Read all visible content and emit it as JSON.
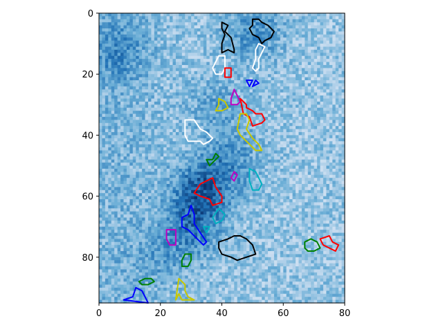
{
  "chart_data": {
    "type": "heatmap",
    "grid": false,
    "xlim": [
      0,
      80
    ],
    "ylim": [
      95,
      0
    ],
    "xticks": [
      0,
      20,
      40,
      60,
      80
    ],
    "yticks": [
      0,
      20,
      40,
      60,
      80
    ],
    "heatmap": {
      "colormap": "Blues",
      "columns": 80,
      "rows": 95,
      "dark_regions": [
        {
          "x": 33,
          "y": 58,
          "strength": 0.9
        },
        {
          "x": 30,
          "y": 70,
          "strength": 0.6
        },
        {
          "x": 42,
          "y": 48,
          "strength": 0.5
        },
        {
          "x": 50,
          "y": 6,
          "strength": 0.55
        },
        {
          "x": 6,
          "y": 12,
          "strength": 0.45
        },
        {
          "x": 38,
          "y": 30,
          "strength": 0.35
        },
        {
          "x": 20,
          "y": 80,
          "strength": 0.3
        }
      ]
    },
    "contours": [
      {
        "color": "#000000",
        "points": [
          [
            40,
            3
          ],
          [
            42,
            4
          ],
          [
            41,
            6
          ],
          [
            43,
            8
          ],
          [
            44,
            12
          ],
          [
            44,
            13
          ],
          [
            42,
            12
          ],
          [
            40,
            13
          ],
          [
            40,
            10
          ],
          [
            41,
            7
          ],
          [
            40,
            5
          ]
        ]
      },
      {
        "color": "#000000",
        "points": [
          [
            50,
            2
          ],
          [
            52,
            2
          ],
          [
            53,
            3
          ],
          [
            55,
            4
          ],
          [
            57,
            6
          ],
          [
            56,
            8
          ],
          [
            54,
            9
          ],
          [
            53,
            10
          ],
          [
            52,
            8
          ],
          [
            50,
            7
          ],
          [
            49,
            5
          ],
          [
            50,
            4
          ]
        ]
      },
      {
        "color": "#ffffff",
        "points": [
          [
            52,
            10
          ],
          [
            54,
            11
          ],
          [
            53,
            13
          ],
          [
            52,
            15
          ],
          [
            52,
            18
          ],
          [
            51,
            19
          ],
          [
            50,
            18
          ],
          [
            51,
            15
          ],
          [
            51,
            12
          ]
        ]
      },
      {
        "color": "#ffffff",
        "points": [
          [
            39,
            14
          ],
          [
            41,
            14
          ],
          [
            41,
            18
          ],
          [
            40,
            20
          ],
          [
            38,
            20
          ],
          [
            37,
            18
          ],
          [
            38,
            16
          ]
        ]
      },
      {
        "color": "#ff0000",
        "points": [
          [
            41,
            18
          ],
          [
            43,
            18
          ],
          [
            43,
            21
          ],
          [
            41,
            21
          ]
        ]
      },
      {
        "color": "#0000ff",
        "points": [
          [
            48,
            22
          ],
          [
            50,
            22
          ],
          [
            49,
            24
          ]
        ]
      },
      {
        "color": "#0000ff",
        "points": [
          [
            51,
            22
          ],
          [
            52,
            23
          ],
          [
            50,
            24
          ]
        ]
      },
      {
        "color": "#c000c0",
        "points": [
          [
            44,
            25
          ],
          [
            45,
            27
          ],
          [
            46,
            29
          ],
          [
            45,
            30
          ],
          [
            43,
            30
          ],
          [
            43,
            28
          ]
        ]
      },
      {
        "color": "#ffffff",
        "points": [
          [
            28,
            35
          ],
          [
            31,
            35
          ],
          [
            33,
            38
          ],
          [
            35,
            39
          ],
          [
            37,
            41
          ],
          [
            36,
            42
          ],
          [
            34,
            43
          ],
          [
            33,
            42
          ],
          [
            29,
            42
          ],
          [
            28,
            40
          ],
          [
            28,
            37
          ]
        ]
      },
      {
        "color": "#c8c800",
        "points": [
          [
            39,
            28
          ],
          [
            41,
            29
          ],
          [
            42,
            31
          ],
          [
            40,
            32
          ],
          [
            38,
            32
          ],
          [
            39,
            30
          ]
        ]
      },
      {
        "color": "#ff0000",
        "points": [
          [
            46,
            28
          ],
          [
            48,
            30
          ],
          [
            48,
            31
          ],
          [
            50,
            32
          ],
          [
            51,
            33
          ],
          [
            53,
            33
          ],
          [
            54,
            35
          ],
          [
            53,
            36
          ],
          [
            50,
            37
          ],
          [
            49,
            34
          ],
          [
            47,
            33
          ]
        ]
      },
      {
        "color": "#c8c800",
        "points": [
          [
            46,
            33
          ],
          [
            48,
            33
          ],
          [
            49,
            35
          ],
          [
            48,
            38
          ],
          [
            50,
            41
          ],
          [
            52,
            43
          ],
          [
            53,
            45
          ],
          [
            51,
            45
          ],
          [
            48,
            42
          ],
          [
            46,
            40
          ],
          [
            45,
            38
          ]
        ]
      },
      {
        "color": "#008000",
        "points": [
          [
            38,
            46
          ],
          [
            39,
            47
          ],
          [
            37,
            49
          ],
          [
            36,
            50
          ],
          [
            35,
            48
          ],
          [
            37,
            48
          ]
        ]
      },
      {
        "color": "#c000c0",
        "points": [
          [
            44,
            52
          ],
          [
            45,
            53
          ],
          [
            44,
            55
          ],
          [
            43,
            54
          ]
        ]
      },
      {
        "color": "#00b0c0",
        "points": [
          [
            49,
            51
          ],
          [
            51,
            52
          ],
          [
            52,
            54
          ],
          [
            53,
            56
          ],
          [
            52,
            58
          ],
          [
            50,
            58
          ],
          [
            49,
            55
          ]
        ]
      },
      {
        "color": "#ff0000",
        "points": [
          [
            33,
            56
          ],
          [
            37,
            54
          ],
          [
            38,
            57
          ],
          [
            40,
            60
          ],
          [
            40,
            62
          ],
          [
            37,
            63
          ],
          [
            36,
            61
          ],
          [
            33,
            60
          ],
          [
            31,
            59
          ]
        ]
      },
      {
        "color": "#00b0c0",
        "points": [
          [
            39,
            64
          ],
          [
            41,
            66
          ],
          [
            40,
            68
          ],
          [
            38,
            69
          ],
          [
            37,
            67
          ]
        ]
      },
      {
        "color": "#0000ff",
        "points": [
          [
            30,
            63
          ],
          [
            31,
            66
          ],
          [
            31,
            69
          ],
          [
            33,
            72
          ],
          [
            35,
            75
          ],
          [
            34,
            76
          ],
          [
            32,
            74
          ],
          [
            29,
            71
          ],
          [
            27,
            70
          ],
          [
            27,
            67
          ],
          [
            29,
            66
          ]
        ]
      },
      {
        "color": "#c000c0",
        "points": [
          [
            22,
            71
          ],
          [
            25,
            71
          ],
          [
            25,
            74
          ],
          [
            25,
            76
          ],
          [
            23,
            76
          ],
          [
            22,
            74
          ]
        ]
      },
      {
        "color": "#00b0c0",
        "points": [
          [
            34,
            70
          ],
          [
            36,
            70
          ],
          [
            35,
            72
          ]
        ]
      },
      {
        "color": "#000000",
        "points": [
          [
            39,
            75
          ],
          [
            42,
            74
          ],
          [
            44,
            73
          ],
          [
            46,
            73
          ],
          [
            48,
            74
          ],
          [
            50,
            76
          ],
          [
            51,
            79
          ],
          [
            48,
            80
          ],
          [
            45,
            81
          ],
          [
            43,
            80
          ],
          [
            40,
            79
          ],
          [
            39,
            77
          ]
        ]
      },
      {
        "color": "#008000",
        "points": [
          [
            67,
            75
          ],
          [
            69,
            74
          ],
          [
            71,
            75
          ],
          [
            72,
            77
          ],
          [
            70,
            78
          ],
          [
            68,
            78
          ],
          [
            67,
            77
          ]
        ]
      },
      {
        "color": "#ff0000",
        "points": [
          [
            72,
            74
          ],
          [
            75,
            73
          ],
          [
            76,
            75
          ],
          [
            78,
            76
          ],
          [
            77,
            78
          ],
          [
            75,
            77
          ],
          [
            73,
            76
          ]
        ]
      },
      {
        "color": "#008000",
        "points": [
          [
            28,
            79
          ],
          [
            30,
            79
          ],
          [
            30,
            81
          ],
          [
            29,
            83
          ],
          [
            27,
            83
          ],
          [
            27,
            81
          ]
        ]
      },
      {
        "color": "#008000",
        "points": [
          [
            13,
            88
          ],
          [
            15,
            87
          ],
          [
            17,
            87
          ],
          [
            18,
            88
          ],
          [
            16,
            89
          ],
          [
            14,
            89
          ]
        ]
      },
      {
        "color": "#0000ff",
        "points": [
          [
            8,
            94
          ],
          [
            11,
            93
          ],
          [
            12,
            90
          ],
          [
            14,
            91
          ],
          [
            15,
            93
          ],
          [
            16,
            95
          ]
        ]
      },
      {
        "color": "#c8c800",
        "points": [
          [
            26,
            87
          ],
          [
            28,
            89
          ],
          [
            28,
            91
          ],
          [
            29,
            93
          ],
          [
            31,
            94
          ],
          [
            27,
            94
          ],
          [
            26,
            92
          ],
          [
            25,
            94
          ]
        ]
      }
    ]
  }
}
